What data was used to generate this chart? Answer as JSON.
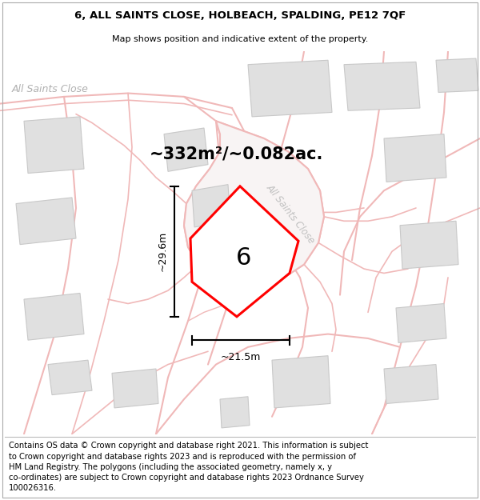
{
  "title_line1": "6, ALL SAINTS CLOSE, HOLBEACH, SPALDING, PE12 7QF",
  "title_line2": "Map shows position and indicative extent of the property.",
  "footer_text": "Contains OS data © Crown copyright and database right 2021. This information is subject\nto Crown copyright and database rights 2023 and is reproduced with the permission of\nHM Land Registry. The polygons (including the associated geometry, namely x, y\nco-ordinates) are subject to Crown copyright and database rights 2023 Ordnance Survey\n100026316.",
  "area_label": "~332m²/~0.082ac.",
  "label_number": "6",
  "dim_height": "~29.6m",
  "dim_width": "~21.5m",
  "street_label_top": "All Saints Close",
  "street_label_diag": "All Saints Close",
  "map_bg": "#faf8f8",
  "road_color": "#f0b8b8",
  "building_color": "#e0e0e0",
  "building_edge": "#c8c8c8",
  "road_area_color": "#f8f0f0",
  "plot_outline_color": "#ff0000",
  "plot_fill_color": "#ffffff",
  "dim_line_color": "#000000",
  "street_label_color": "#b0b0b0",
  "title_fontsize": 10,
  "footer_fontsize": 7.2
}
